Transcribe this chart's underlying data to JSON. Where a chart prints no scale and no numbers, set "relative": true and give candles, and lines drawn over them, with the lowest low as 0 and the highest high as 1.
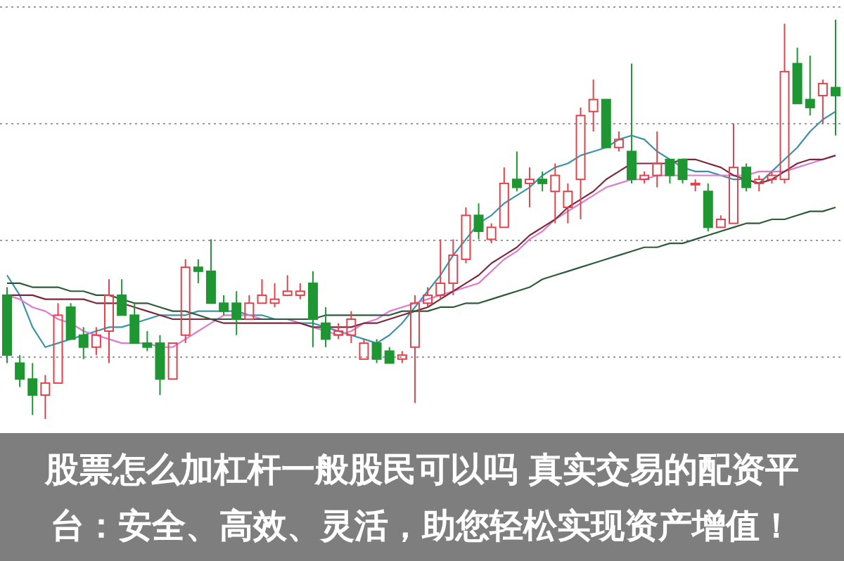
{
  "chart_data": {
    "type": "candlestick",
    "relative": true,
    "title": "股票怎么加杠杆一般股民可以吗 真实交易的配资平台：安全、高效、灵活，助您轻松实现资产增值！",
    "grid": "y",
    "categories": [
      null,
      null,
      null,
      null,
      null,
      null,
      null,
      null,
      null,
      null,
      null,
      null,
      null,
      null,
      null,
      null,
      null,
      null,
      null,
      null,
      null,
      null,
      null,
      null,
      null,
      null,
      null,
      null,
      null,
      null,
      null,
      null,
      null,
      null,
      null,
      null,
      null,
      null,
      null,
      null,
      null,
      null,
      null,
      null,
      null,
      null,
      null,
      null,
      null,
      null,
      null,
      null,
      null,
      null,
      null,
      null,
      null,
      null,
      null,
      null,
      null,
      null,
      null,
      null,
      null,
      null
    ],
    "ohlc": [
      [
        0.31,
        0.33,
        0.14,
        0.16
      ],
      [
        0.14,
        0.16,
        0.08,
        0.1
      ],
      [
        0.1,
        0.14,
        0.01,
        0.06
      ],
      [
        0.06,
        0.11,
        0,
        0.09
      ],
      [
        0.09,
        0.29,
        0.09,
        0.26
      ],
      [
        0.28,
        0.29,
        0.2,
        0.2
      ],
      [
        0.21,
        0.23,
        0.15,
        0.18
      ],
      [
        0.18,
        0.23,
        0.16,
        0.21
      ],
      [
        0.22,
        0.35,
        0.14,
        0.31
      ],
      [
        0.31,
        0.35,
        0.26,
        0.26
      ],
      [
        0.26,
        0.29,
        0.19,
        0.19
      ],
      [
        0.19,
        0.22,
        0.17,
        0.18
      ],
      [
        0.19,
        0.21,
        0.06,
        0.1
      ],
      [
        0.1,
        0.19,
        0.1,
        0.19
      ],
      [
        0.21,
        0.4,
        0.19,
        0.38
      ],
      [
        0.38,
        0.4,
        0.34,
        0.37
      ],
      [
        0.37,
        0.45,
        0.29,
        0.29
      ],
      [
        0.29,
        0.31,
        0.26,
        0.27
      ],
      [
        0.29,
        0.32,
        0.21,
        0.25
      ],
      [
        0.25,
        0.31,
        0.25,
        0.29
      ],
      [
        0.29,
        0.35,
        0.29,
        0.31
      ],
      [
        0.29,
        0.34,
        0.28,
        0.3
      ],
      [
        0.31,
        0.36,
        0.31,
        0.32
      ],
      [
        0.31,
        0.34,
        0.3,
        0.32
      ],
      [
        0.34,
        0.37,
        0.18,
        0.25
      ],
      [
        0.24,
        0.28,
        0.18,
        0.2
      ],
      [
        0.21,
        0.24,
        0.2,
        0.22
      ],
      [
        0.21,
        0.27,
        0.19,
        0.25
      ],
      [
        0.15,
        0.2,
        0.15,
        0.19
      ],
      [
        0.19,
        0.2,
        0.14,
        0.15
      ],
      [
        0.17,
        0.18,
        0.14,
        0.14
      ],
      [
        0.15,
        0.17,
        0.14,
        0.16
      ],
      [
        0.18,
        0.31,
        0.04,
        0.29
      ],
      [
        0.29,
        0.33,
        0.28,
        0.31
      ],
      [
        0.31,
        0.45,
        0.3,
        0.34
      ],
      [
        0.34,
        0.45,
        0.31,
        0.41
      ],
      [
        0.4,
        0.53,
        0.39,
        0.51
      ],
      [
        0.51,
        0.54,
        0.45,
        0.47
      ],
      [
        0.45,
        0.49,
        0.44,
        0.48
      ],
      [
        0.48,
        0.63,
        0.48,
        0.59
      ],
      [
        0.6,
        0.67,
        0.57,
        0.58
      ],
      [
        0.59,
        0.63,
        0.53,
        0.6
      ],
      [
        0.6,
        0.62,
        0.57,
        0.59
      ],
      [
        0.57,
        0.64,
        0.49,
        0.61
      ],
      [
        0.53,
        0.59,
        0.49,
        0.57
      ],
      [
        0.6,
        0.78,
        0.5,
        0.76
      ],
      [
        0.77,
        0.85,
        0.72,
        0.8
      ],
      [
        0.8,
        0.8,
        0.68,
        0.68
      ],
      [
        0.68,
        0.72,
        0.67,
        0.7
      ],
      [
        0.67,
        0.89,
        0.59,
        0.6
      ],
      [
        0.6,
        0.62,
        0.59,
        0.61
      ],
      [
        0.61,
        0.72,
        0.58,
        0.64
      ],
      [
        0.65,
        0.65,
        0.59,
        0.61
      ],
      [
        0.65,
        0.65,
        0.59,
        0.6
      ],
      [
        0.59,
        0.6,
        0.57,
        0.59
      ],
      [
        0.57,
        0.59,
        0.47,
        0.48
      ],
      [
        0.48,
        0.51,
        0.48,
        0.5
      ],
      [
        0.49,
        0.74,
        0.49,
        0.63
      ],
      [
        0.63,
        0.64,
        0.57,
        0.58
      ],
      [
        0.59,
        0.61,
        0.57,
        0.6
      ],
      [
        0.6,
        0.62,
        0.59,
        0.61
      ],
      [
        0.6,
        0.99,
        0.59,
        0.87
      ],
      [
        0.89,
        0.93,
        0.79,
        0.79
      ],
      [
        0.8,
        0.91,
        0.76,
        0.78
      ],
      [
        0.81,
        0.85,
        0.74,
        0.84
      ],
      [
        0.83,
        1,
        0.71,
        0.81
      ]
    ],
    "colors": [
      "#1e9632",
      "#1e9632",
      "#1e9632",
      "#e0434b",
      "#e0434b",
      "#1e9632",
      "#1e9632",
      "#e0434b",
      "#e0434b",
      "#1e9632",
      "#1e9632",
      "#1e9632",
      "#1e9632",
      "#e0434b",
      "#e0434b",
      "#1e9632",
      "#1e9632",
      "#1e9632",
      "#1e9632",
      "#e0434b",
      "#e0434b",
      "#e0434b",
      "#e0434b",
      "#e0434b",
      "#1e9632",
      "#1e9632",
      "#e0434b",
      "#e0434b",
      "#e0434b",
      "#1e9632",
      "#1e9632",
      "#e0434b",
      "#e0434b",
      "#e0434b",
      "#e0434b",
      "#e0434b",
      "#e0434b",
      "#1e9632",
      "#e0434b",
      "#e0434b",
      "#1e9632",
      "#e0434b",
      "#1e9632",
      "#e0434b",
      "#e0434b",
      "#e0434b",
      "#e0434b",
      "#1e9632",
      "#e0434b",
      "#1e9632",
      "#e0434b",
      "#e0434b",
      "#1e9632",
      "#1e9632",
      "#e0434b",
      "#1e9632",
      "#e0434b",
      "#e0434b",
      "#1e9632",
      "#e0434b",
      "#e0434b",
      "#e0434b",
      "#1e9632",
      "#1e9632",
      "#e0434b",
      "#1e9632"
    ],
    "series": [
      {
        "type": "line",
        "color": "#3a93a8",
        "values": [
          0.36,
          0.31,
          0.23,
          0.18,
          0.19,
          0.2,
          0.21,
          0.22,
          0.23,
          0.23,
          0.24,
          0.25,
          0.26,
          0.26,
          0.26,
          0.27,
          0.27,
          0.27,
          0.27,
          0.26,
          0.26,
          0.25,
          0.25,
          0.24,
          0.24,
          0.23,
          0.22,
          0.21,
          0.2,
          0.19,
          0.21,
          0.24,
          0.28,
          0.32,
          0.36,
          0.41,
          0.45,
          0.49,
          0.51,
          0.54,
          0.56,
          0.58,
          0.61,
          0.63,
          0.64,
          0.66,
          0.67,
          0.68,
          0.7,
          0.71,
          0.7,
          0.67,
          0.65,
          0.63,
          0.62,
          0.62,
          0.61,
          0.6,
          0.6,
          0.59,
          0.62,
          0.65,
          0.68,
          0.72,
          0.75,
          0.77
        ]
      },
      {
        "type": "line",
        "color": "#e07ad0",
        "values": [
          0.31,
          0.3,
          0.28,
          0.27,
          0.25,
          0.24,
          0.22,
          0.21,
          0.2,
          0.19,
          0.19,
          0.19,
          0.18,
          0.18,
          0.2,
          0.22,
          0.24,
          0.26,
          0.26,
          0.26,
          0.25,
          0.25,
          0.25,
          0.24,
          0.23,
          0.22,
          0.21,
          0.22,
          0.24,
          0.25,
          0.27,
          0.28,
          0.29,
          0.3,
          0.31,
          0.32,
          0.33,
          0.34,
          0.37,
          0.4,
          0.42,
          0.45,
          0.47,
          0.5,
          0.52,
          0.54,
          0.56,
          0.58,
          0.59,
          0.6,
          0.6,
          0.61,
          0.61,
          0.61,
          0.61,
          0.61,
          0.61,
          0.61,
          0.61,
          0.62,
          0.62,
          0.62,
          0.63,
          0.64,
          0.65,
          0.66
        ]
      },
      {
        "type": "line",
        "color": "#7a2a3a",
        "values": [
          0.31,
          0.31,
          0.31,
          0.3,
          0.3,
          0.3,
          0.3,
          0.29,
          0.29,
          0.29,
          0.28,
          0.27,
          0.26,
          0.25,
          0.25,
          0.25,
          0.25,
          0.24,
          0.24,
          0.24,
          0.24,
          0.24,
          0.24,
          0.24,
          0.23,
          0.23,
          0.23,
          0.23,
          0.24,
          0.24,
          0.25,
          0.26,
          0.27,
          0.28,
          0.3,
          0.32,
          0.34,
          0.36,
          0.39,
          0.41,
          0.43,
          0.46,
          0.48,
          0.5,
          0.53,
          0.55,
          0.57,
          0.6,
          0.62,
          0.64,
          0.64,
          0.64,
          0.64,
          0.65,
          0.65,
          0.64,
          0.63,
          0.61,
          0.6,
          0.59,
          0.6,
          0.62,
          0.64,
          0.65,
          0.65,
          0.66
        ]
      },
      {
        "type": "line",
        "color": "#2f5a3a",
        "values": [
          0.34,
          0.34,
          0.33,
          0.33,
          0.33,
          0.32,
          0.32,
          0.31,
          0.31,
          0.3,
          0.29,
          0.29,
          0.28,
          0.27,
          0.27,
          0.26,
          0.25,
          0.25,
          0.25,
          0.25,
          0.25,
          0.25,
          0.25,
          0.25,
          0.25,
          0.26,
          0.26,
          0.26,
          0.26,
          0.26,
          0.26,
          0.27,
          0.27,
          0.27,
          0.28,
          0.28,
          0.29,
          0.29,
          0.3,
          0.31,
          0.32,
          0.33,
          0.35,
          0.36,
          0.37,
          0.38,
          0.39,
          0.4,
          0.41,
          0.42,
          0.43,
          0.43,
          0.44,
          0.44,
          0.45,
          0.46,
          0.47,
          0.48,
          0.49,
          0.49,
          0.5,
          0.5,
          0.51,
          0.52,
          0.52,
          0.53
        ]
      }
    ]
  }
}
